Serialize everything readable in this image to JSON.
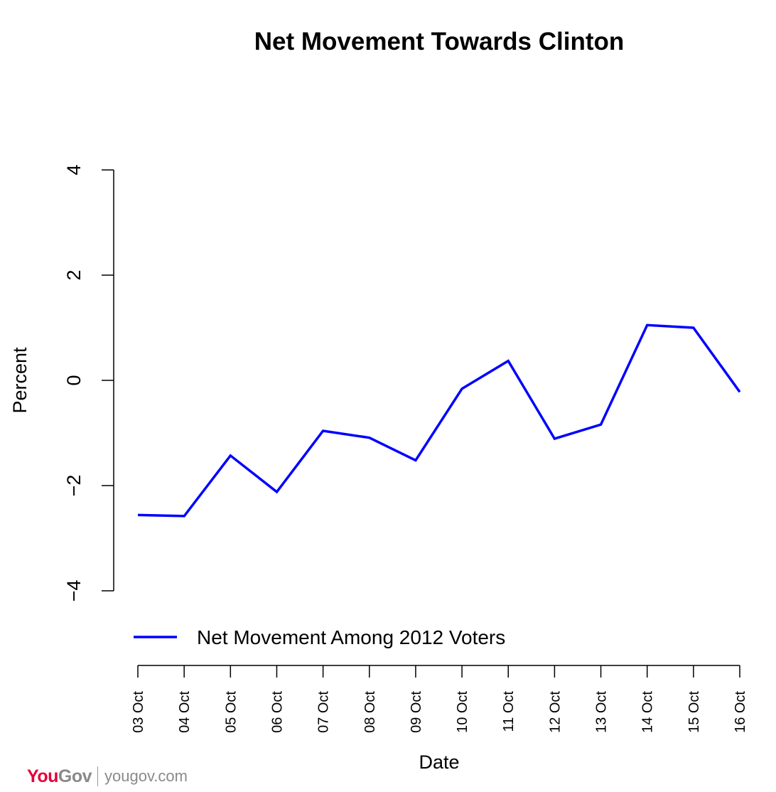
{
  "chart_data": {
    "type": "line",
    "title": "Net Movement Towards Clinton",
    "xlabel": "Date",
    "ylabel": "Percent",
    "categories": [
      "03 Oct",
      "04 Oct",
      "05 Oct",
      "06 Oct",
      "07 Oct",
      "08 Oct",
      "09 Oct",
      "10 Oct",
      "11 Oct",
      "12 Oct",
      "13 Oct",
      "14 Oct",
      "15 Oct",
      "16 Oct"
    ],
    "yticks": [
      -4,
      -2,
      0,
      2,
      4
    ],
    "ytick_labels": [
      "−4",
      "−2",
      "0",
      "2",
      "4"
    ],
    "ylim": [
      -4,
      4
    ],
    "grid": false,
    "legend_position": "bottom-left",
    "series": [
      {
        "name": "Net Movement Among 2012 Voters",
        "color": "#0000ff",
        "values": [
          -2.56,
          -2.58,
          -1.43,
          -2.12,
          -0.96,
          -1.09,
          -1.52,
          -0.16,
          0.37,
          -1.11,
          -0.84,
          1.05,
          1.0,
          -0.22
        ]
      }
    ]
  },
  "branding": {
    "logo_you": "You",
    "logo_gov": "Gov",
    "logo_you_color": "#e4003b",
    "logo_gov_color": "#8a8a8a",
    "url": "yougov.com"
  }
}
